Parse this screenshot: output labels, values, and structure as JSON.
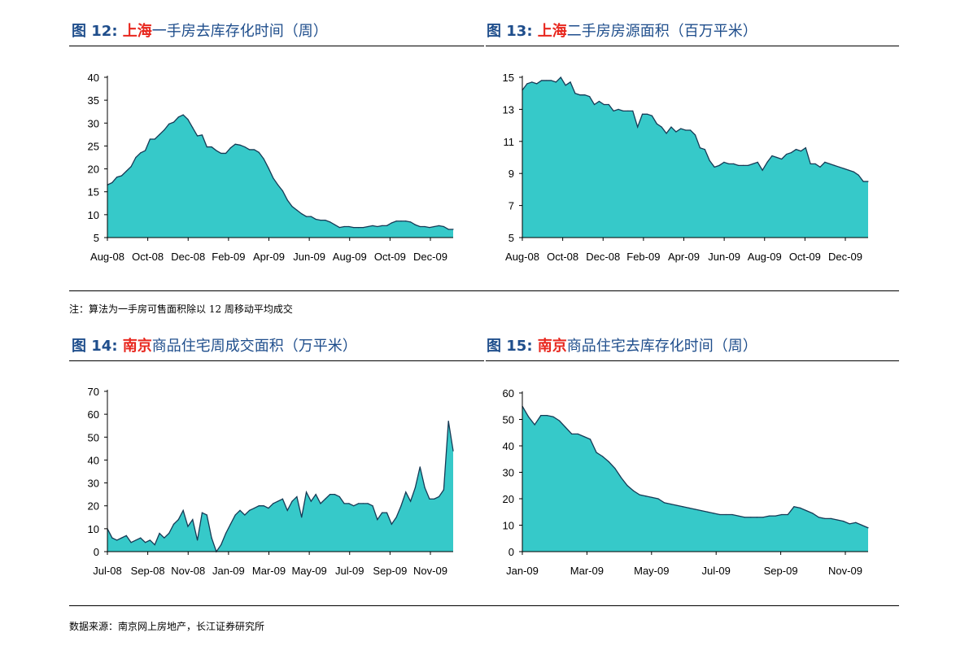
{
  "colors": {
    "title": "#1f4e8c",
    "highlight": "#e8271e",
    "area_fill": "#36c9c9",
    "area_stroke": "#163a55"
  },
  "panels": [
    {
      "prefix": "图 12:",
      "highlight": "上海",
      "rest": "一手房去库存化时间（周）"
    },
    {
      "prefix": "图 13:",
      "highlight": "上海",
      "rest": "二手房房源面积（百万平米）"
    },
    {
      "prefix": "图 14:",
      "highlight": "南京",
      "rest": "商品住宅周成交面积（万平米）"
    },
    {
      "prefix": "图 15:",
      "highlight": "南京",
      "rest": "商品住宅去库存化时间（周）"
    }
  ],
  "notes": {
    "note1": "注：算法为一手房可售面积除以 12 周移动平均成交",
    "source": "数据来源：南京网上房地产，长江证券研究所"
  },
  "chart_data": [
    {
      "type": "area",
      "ylim": [
        5,
        40
      ],
      "yticks": [
        5,
        10,
        15,
        20,
        25,
        30,
        35,
        40
      ],
      "xticks": [
        "Aug-08",
        "Oct-08",
        "Dec-08",
        "Feb-09",
        "Apr-09",
        "Jun-09",
        "Aug-09",
        "Oct-09",
        "Dec-09"
      ],
      "values": [
        16.5,
        17,
        18.2,
        18.5,
        19.5,
        20.5,
        22.5,
        23.5,
        24,
        26.5,
        26.5,
        27.5,
        28.5,
        29.8,
        30.2,
        31.3,
        31.8,
        30.8,
        29,
        27.2,
        27.4,
        24.8,
        24.8,
        24,
        23.4,
        23.4,
        24.6,
        25.4,
        25.2,
        24.8,
        24.2,
        24.2,
        23.6,
        22.2,
        20.2,
        18,
        16.5,
        15.2,
        13.2,
        11.8,
        11,
        10.2,
        9.6,
        9.6,
        9,
        8.8,
        8.8,
        8.4,
        7.8,
        7.2,
        7.4,
        7.4,
        7.2,
        7.2,
        7.2,
        7.4,
        7.6,
        7.4,
        7.6,
        7.6,
        8.2,
        8.6,
        8.6,
        8.6,
        8.4,
        7.8,
        7.4,
        7.4,
        7.2,
        7.4,
        7.6,
        7.4,
        6.8,
        6.8
      ]
    },
    {
      "type": "area",
      "ylim": [
        5,
        15
      ],
      "yticks": [
        5,
        7,
        9,
        11,
        13,
        15
      ],
      "xticks": [
        "Aug-08",
        "Oct-08",
        "Dec-08",
        "Feb-09",
        "Apr-09",
        "Jun-09",
        "Aug-09",
        "Oct-09",
        "Dec-09"
      ],
      "values": [
        14.2,
        14.6,
        14.7,
        14.6,
        14.8,
        14.8,
        14.8,
        14.7,
        15.0,
        14.5,
        14.7,
        14.0,
        13.9,
        13.9,
        13.8,
        13.3,
        13.5,
        13.3,
        13.3,
        12.9,
        13.0,
        12.9,
        12.9,
        12.9,
        11.9,
        12.7,
        12.7,
        12.6,
        12.1,
        11.9,
        11.5,
        11.9,
        11.6,
        11.8,
        11.7,
        11.7,
        11.4,
        10.6,
        10.5,
        9.8,
        9.4,
        9.5,
        9.7,
        9.6,
        9.6,
        9.5,
        9.5,
        9.5,
        9.6,
        9.7,
        9.2,
        9.7,
        10.1,
        10.0,
        9.9,
        10.2,
        10.3,
        10.5,
        10.4,
        10.6,
        9.6,
        9.6,
        9.4,
        9.7,
        9.6,
        9.5,
        9.4,
        9.3,
        9.2,
        9.1,
        8.9,
        8.5,
        8.5
      ]
    },
    {
      "type": "area",
      "ylim": [
        0,
        70
      ],
      "yticks": [
        0,
        10,
        20,
        30,
        40,
        50,
        60,
        70
      ],
      "xticks": [
        "Jul-08",
        "Sep-08",
        "Nov-08",
        "Jan-09",
        "Mar-09",
        "May-09",
        "Jul-09",
        "Sep-09",
        "Nov-09"
      ],
      "values": [
        10,
        6,
        5,
        6,
        7,
        4,
        5,
        6,
        4,
        5,
        3,
        8,
        6,
        8,
        12,
        14,
        18,
        11,
        14,
        5,
        17,
        16,
        6,
        0,
        3,
        8,
        12,
        16,
        18,
        16,
        18,
        19,
        20,
        20,
        19,
        21,
        22,
        23,
        18,
        22,
        24,
        15,
        26,
        22,
        25,
        21,
        23,
        25,
        25,
        24,
        21,
        21,
        20,
        21,
        21,
        21,
        20,
        14,
        17,
        17,
        12,
        15,
        20,
        26,
        22,
        28,
        37,
        28,
        23,
        23,
        24,
        27,
        57,
        44
      ]
    },
    {
      "type": "area",
      "ylim": [
        0,
        60
      ],
      "yticks": [
        0,
        10,
        20,
        30,
        40,
        50,
        60
      ],
      "xticks": [
        "Jan-09",
        "Mar-09",
        "May-09",
        "Jul-09",
        "Sep-09",
        "Nov-09"
      ],
      "values": [
        55,
        51,
        48,
        51.5,
        51.5,
        51,
        49.5,
        47,
        44.5,
        44.5,
        43.5,
        42.5,
        37.5,
        36,
        34,
        31.5,
        28,
        25,
        23,
        21.5,
        21,
        20.5,
        20,
        18.5,
        18,
        17.5,
        17,
        16.5,
        16,
        15.5,
        15,
        14.5,
        14,
        14,
        14,
        13.5,
        13,
        13,
        13,
        13,
        13.5,
        13.5,
        14,
        14,
        17,
        16.5,
        15.5,
        14.5,
        13,
        12.5,
        12.5,
        12,
        11.5,
        10.5,
        11,
        10,
        9
      ]
    }
  ]
}
